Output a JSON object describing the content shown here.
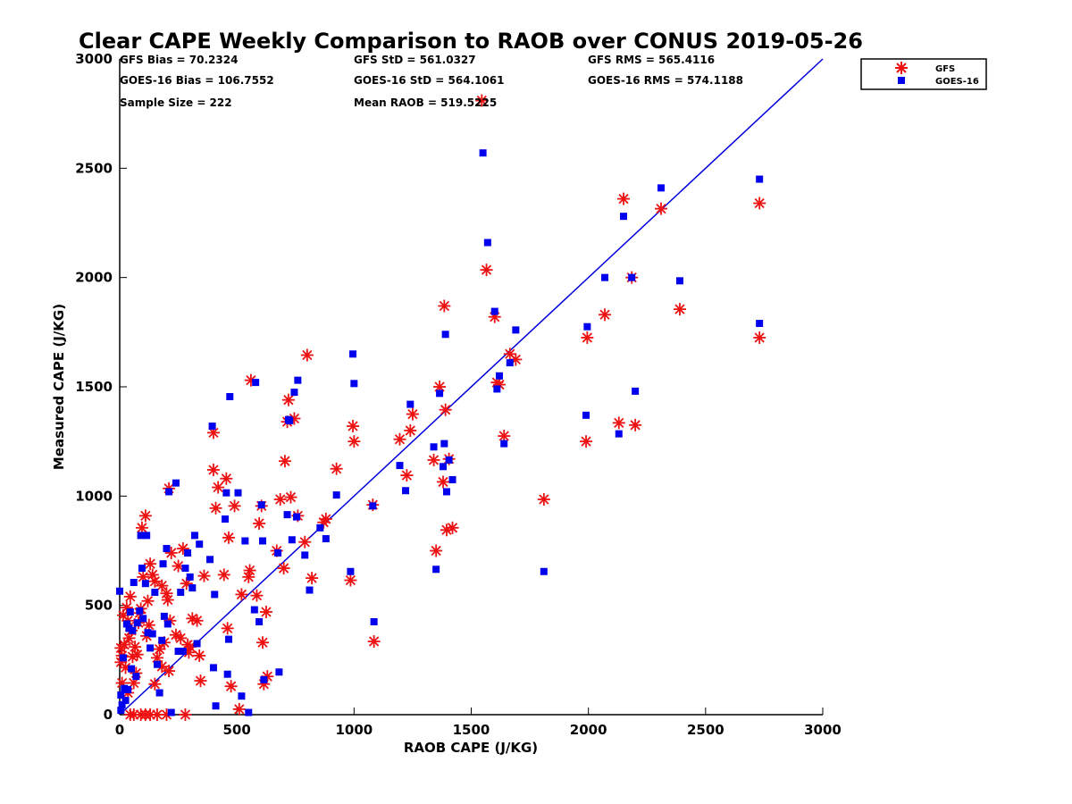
{
  "chart_data": {
    "type": "scatter",
    "title": "Clear CAPE Weekly Comparison to RAOB over CONUS 2019-05-26",
    "xlabel": "RAOB CAPE (J/KG)",
    "ylabel": "Measured CAPE (J/KG)",
    "xlim": [
      0,
      3000
    ],
    "ylim": [
      0,
      3000
    ],
    "xticks": [
      "0",
      "500",
      "1000",
      "1500",
      "2000",
      "2500",
      "3000"
    ],
    "yticks": [
      "0",
      "500",
      "1000",
      "1500",
      "2000",
      "2500",
      "3000"
    ],
    "grid": false,
    "legend_position": "outside-top-right",
    "reference_line": {
      "name": "1:1",
      "color": "#0000dd",
      "points": [
        [
          0,
          0
        ],
        [
          3000,
          3000
        ]
      ]
    },
    "stats": [
      {
        "text": "GFS Bias = 70.2324"
      },
      {
        "text": "GFS StD = 561.0327"
      },
      {
        "text": "GFS RMS = 565.4116"
      },
      {
        "text": "GOES-16 Bias = 106.7552"
      },
      {
        "text": "GOES-16 StD = 564.1061"
      },
      {
        "text": "GOES-16 RMS = 574.1188"
      },
      {
        "text": "Sample Size = 222"
      },
      {
        "text": "Mean RAOB = 519.5225"
      }
    ],
    "series": [
      {
        "name": "GFS",
        "marker": "asterisk",
        "color": "#ee1111",
        "x": [
          2730,
          2730,
          2390,
          2310,
          2200,
          2185,
          2150,
          2130,
          2070,
          1995,
          1990,
          1810,
          1690,
          1665,
          1640,
          1620,
          1610,
          1600,
          1565,
          1545,
          1420,
          1405,
          1395,
          1390,
          1385,
          1380,
          1365,
          1350,
          1340,
          1250,
          1240,
          1225,
          1195,
          1085,
          1080,
          1000,
          995,
          985,
          925,
          880,
          870,
          820,
          800,
          790,
          760,
          745,
          730,
          720,
          715,
          705,
          700,
          685,
          670,
          630,
          625,
          615,
          610,
          605,
          595,
          585,
          560,
          555,
          550,
          520,
          510,
          490,
          475,
          465,
          460,
          455,
          445,
          420,
          410,
          400,
          400,
          360,
          345,
          340,
          330,
          310,
          300,
          295,
          290,
          285,
          270,
          260,
          250,
          240,
          220,
          215,
          210,
          205,
          200,
          190,
          180,
          170,
          160,
          150,
          140,
          130,
          125,
          120,
          115,
          110,
          100,
          95,
          90,
          85,
          80,
          75,
          70,
          65,
          60,
          55,
          50,
          45,
          40,
          35,
          30,
          25,
          20,
          15,
          10,
          10,
          5,
          5,
          60,
          90,
          130,
          200,
          280,
          160,
          110,
          45,
          35,
          150,
          180,
          210
        ],
        "y": [
          2340,
          1725,
          1855,
          2315,
          1325,
          2000,
          2360,
          1335,
          1830,
          1725,
          1250,
          985,
          1625,
          1650,
          1275,
          1510,
          1520,
          1820,
          2035,
          2810,
          855,
          1170,
          845,
          1395,
          1870,
          1065,
          1500,
          750,
          1165,
          1375,
          1300,
          1095,
          1260,
          335,
          960,
          1250,
          1320,
          615,
          1125,
          895,
          880,
          625,
          1645,
          790,
          910,
          1355,
          995,
          1440,
          1340,
          1160,
          670,
          985,
          750,
          175,
          470,
          140,
          330,
          955,
          875,
          545,
          1530,
          660,
          630,
          550,
          25,
          955,
          130,
          810,
          395,
          1080,
          640,
          1040,
          945,
          1120,
          1290,
          635,
          155,
          270,
          430,
          440,
          310,
          285,
          320,
          600,
          760,
          350,
          680,
          365,
          740,
          430,
          1035,
          525,
          555,
          330,
          590,
          300,
          260,
          610,
          640,
          690,
          410,
          520,
          360,
          910,
          630,
          855,
          485,
          465,
          420,
          275,
          190,
          310,
          145,
          265,
          385,
          540,
          350,
          430,
          490,
          215,
          320,
          455,
          145,
          270,
          305,
          240,
          0,
          0,
          0,
          0,
          0,
          0,
          0,
          0,
          100,
          140,
          220,
          200
        ]
      },
      {
        "name": "GOES-16",
        "marker": "square",
        "color": "#0000ee",
        "x": [
          2730,
          2730,
          2390,
          2310,
          2200,
          2185,
          2150,
          2130,
          2070,
          1995,
          1990,
          1810,
          1690,
          1665,
          1640,
          1620,
          1610,
          1600,
          1570,
          1550,
          1420,
          1405,
          1395,
          1390,
          1385,
          1380,
          1365,
          1350,
          1340,
          1240,
          1220,
          1195,
          1085,
          1080,
          1000,
          995,
          985,
          925,
          880,
          855,
          810,
          790,
          760,
          755,
          745,
          735,
          725,
          720,
          715,
          680,
          675,
          615,
          610,
          605,
          595,
          580,
          575,
          550,
          535,
          520,
          505,
          470,
          465,
          460,
          455,
          450,
          410,
          405,
          400,
          395,
          385,
          340,
          330,
          320,
          310,
          300,
          290,
          280,
          270,
          260,
          250,
          240,
          220,
          210,
          205,
          200,
          190,
          185,
          180,
          170,
          160,
          150,
          140,
          130,
          120,
          115,
          110,
          100,
          95,
          90,
          85,
          75,
          70,
          60,
          55,
          50,
          45,
          40,
          35,
          30,
          25,
          20,
          15,
          10,
          5,
          5,
          0
        ],
        "y": [
          2450,
          1790,
          1985,
          2410,
          1480,
          2000,
          2280,
          1285,
          2000,
          1775,
          1370,
          655,
          1760,
          1610,
          1240,
          1550,
          1490,
          1845,
          2160,
          2570,
          1075,
          1165,
          1020,
          1740,
          1240,
          1135,
          1470,
          665,
          1225,
          1420,
          1025,
          1140,
          425,
          955,
          1515,
          1650,
          655,
          1005,
          805,
          855,
          570,
          730,
          1530,
          905,
          1475,
          800,
          1345,
          1350,
          915,
          195,
          740,
          160,
          795,
          960,
          425,
          1520,
          480,
          10,
          795,
          85,
          1015,
          1455,
          345,
          185,
          1015,
          895,
          40,
          550,
          215,
          1320,
          710,
          780,
          325,
          820,
          580,
          630,
          740,
          670,
          290,
          560,
          290,
          1060,
          10,
          1020,
          415,
          760,
          450,
          690,
          340,
          100,
          230,
          560,
          370,
          305,
          375,
          820,
          600,
          440,
          670,
          820,
          475,
          420,
          175,
          605,
          385,
          210,
          470,
          395,
          115,
          415,
          65,
          120,
          260,
          45,
          90,
          20,
          565
        ]
      }
    ]
  }
}
